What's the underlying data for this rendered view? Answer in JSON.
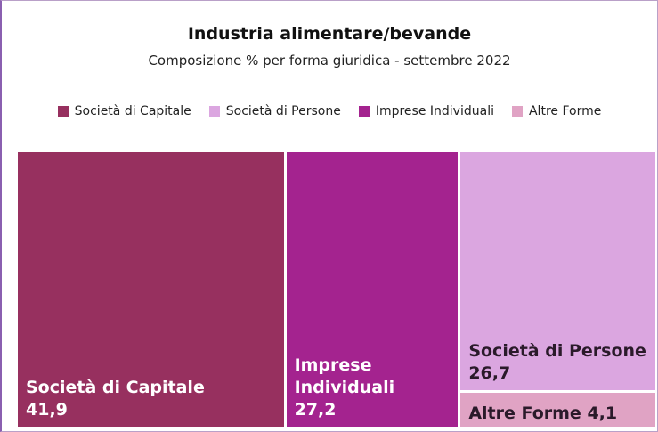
{
  "chart_data": {
    "type": "treemap",
    "title": "Industria alimentare/bevande",
    "subtitle": "Composizione % per forma giuridica - settembre 2022",
    "categories": [
      "Società di Capitale",
      "Società di Persone",
      "Imprese Individuali",
      "Altre Forme"
    ],
    "values": [
      41.9,
      26.7,
      27.2,
      4.1
    ],
    "value_labels": [
      "41,9",
      "26,7",
      "27,2",
      "4,1"
    ],
    "colors": [
      "#97305f",
      "#dba6e0",
      "#a4238f",
      "#e0a3c4"
    ],
    "label_colors": [
      "#ffffff",
      "#2a1a2a",
      "#ffffff",
      "#2a1a2a"
    ],
    "legend": "top"
  }
}
